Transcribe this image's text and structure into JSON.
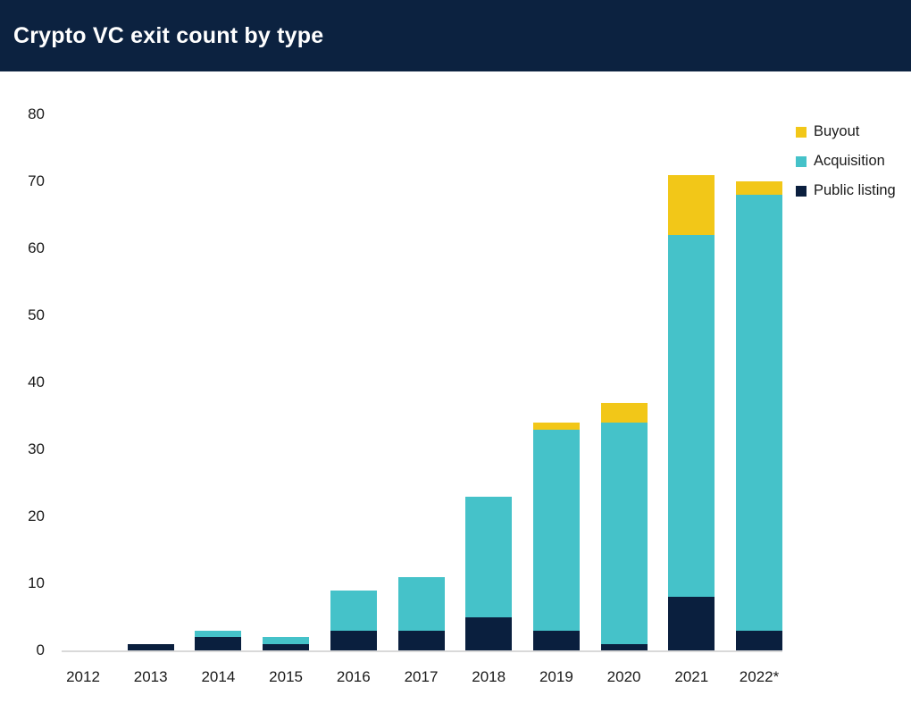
{
  "header": {
    "title": "Crypto VC exit count by type",
    "bg_color": "#0C2240",
    "text_color": "#FFFFFF"
  },
  "chart_data": {
    "type": "bar",
    "stacked": true,
    "title": "Crypto VC exit count by type",
    "xlabel": "",
    "ylabel": "",
    "grid": false,
    "legend_position": "top-right",
    "ylim": [
      0,
      80
    ],
    "yticks": [
      0,
      10,
      20,
      30,
      40,
      50,
      60,
      70,
      80
    ],
    "categories": [
      "2012",
      "2013",
      "2014",
      "2015",
      "2016",
      "2017",
      "2018",
      "2019",
      "2020",
      "2021",
      "2022*"
    ],
    "series": [
      {
        "name": "Public listing",
        "color": "#0A1F3E",
        "values": [
          0,
          1,
          2,
          1,
          3,
          3,
          5,
          3,
          1,
          8,
          3
        ]
      },
      {
        "name": "Acquisition",
        "color": "#45C2C9",
        "values": [
          0,
          0,
          1,
          1,
          6,
          8,
          18,
          30,
          33,
          54,
          65
        ]
      },
      {
        "name": "Buyout",
        "color": "#F2C718",
        "values": [
          0,
          0,
          0,
          0,
          0,
          0,
          0,
          1,
          3,
          9,
          2
        ]
      }
    ],
    "totals": [
      0,
      1,
      3,
      2,
      9,
      11,
      23,
      34,
      37,
      71,
      70
    ],
    "legend_order": [
      "Buyout",
      "Acquisition",
      "Public listing"
    ],
    "axis_line_color": "#D9D9D9",
    "tick_text_color": "#1A1A1A"
  }
}
